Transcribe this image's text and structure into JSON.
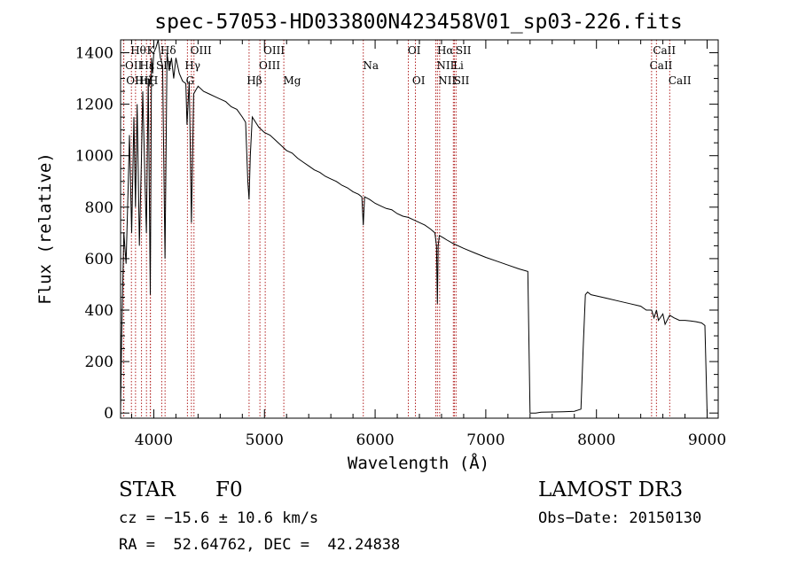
{
  "chart_data": {
    "type": "line",
    "title": "spec-57053-HD033800N423458V01_sp03-226.fits",
    "xlabel": "Wavelength (Å)",
    "ylabel": "Flux (relative)",
    "xlim": [
      3700,
      9100
    ],
    "ylim": [
      -20,
      1450
    ],
    "xticks": [
      4000,
      5000,
      6000,
      7000,
      8000,
      9000
    ],
    "yticks": [
      0,
      200,
      400,
      600,
      800,
      1000,
      1200,
      1400
    ],
    "series": [
      {
        "name": "flux",
        "x": [
          3700,
          3710,
          3730,
          3750,
          3770,
          3780,
          3800,
          3820,
          3835,
          3850,
          3870,
          3889,
          3900,
          3920,
          3933,
          3950,
          3968,
          3980,
          3990,
          4000,
          4020,
          4040,
          4060,
          4080,
          4101,
          4120,
          4140,
          4160,
          4180,
          4200,
          4230,
          4260,
          4290,
          4300,
          4320,
          4340,
          4360,
          4400,
          4450,
          4500,
          4550,
          4600,
          4650,
          4700,
          4750,
          4800,
          4830,
          4850,
          4861,
          4872,
          4890,
          4920,
          4950,
          5000,
          5050,
          5100,
          5150,
          5200,
          5250,
          5300,
          5350,
          5400,
          5450,
          5500,
          5550,
          5600,
          5650,
          5700,
          5750,
          5800,
          5850,
          5880,
          5893,
          5905,
          5950,
          6000,
          6050,
          6100,
          6150,
          6200,
          6250,
          6300,
          6350,
          6400,
          6450,
          6500,
          6540,
          6555,
          6563,
          6570,
          6580,
          6620,
          6650,
          6700,
          6800,
          6900,
          7000,
          7100,
          7200,
          7300,
          7380,
          7400,
          7420,
          7450,
          7500,
          7600,
          7700,
          7800,
          7860,
          7880,
          7900,
          7920,
          7950,
          8000,
          8100,
          8200,
          8300,
          8400,
          8450,
          8498,
          8520,
          8542,
          8560,
          8600,
          8620,
          8662,
          8700,
          8750,
          8800,
          8850,
          8900,
          8950,
          8980,
          9000
        ],
        "y": [
          10,
          300,
          700,
          580,
          900,
          1080,
          700,
          1150,
          800,
          1200,
          650,
          1000,
          1250,
          900,
          700,
          1300,
          460,
          1380,
          1320,
          1400,
          1420,
          1460,
          1380,
          1350,
          600,
          1400,
          1330,
          1380,
          1300,
          1380,
          1320,
          1290,
          1280,
          1120,
          1290,
          740,
          1240,
          1270,
          1250,
          1240,
          1230,
          1220,
          1210,
          1190,
          1180,
          1150,
          1130,
          900,
          830,
          1000,
          1150,
          1130,
          1110,
          1090,
          1080,
          1060,
          1040,
          1020,
          1010,
          990,
          975,
          960,
          945,
          935,
          920,
          910,
          900,
          885,
          875,
          860,
          850,
          840,
          730,
          840,
          830,
          815,
          805,
          795,
          790,
          775,
          765,
          760,
          750,
          740,
          730,
          715,
          700,
          650,
          425,
          650,
          690,
          680,
          672,
          660,
          640,
          622,
          605,
          590,
          575,
          560,
          550,
          0,
          0,
          0,
          3,
          4,
          5,
          7,
          15,
          250,
          460,
          470,
          460,
          455,
          445,
          435,
          425,
          415,
          400,
          400,
          370,
          400,
          360,
          385,
          345,
          380,
          370,
          360,
          360,
          358,
          355,
          350,
          340,
          0
        ]
      }
    ],
    "spectral_lines": [
      {
        "name": "Hθ",
        "wavelength": 3798
      },
      {
        "name": "OII",
        "wavelength": 3727
      },
      {
        "name": "OII",
        "wavelength": 3729
      },
      {
        "name": "Hη",
        "wavelength": 3835
      },
      {
        "name": "K",
        "wavelength": 3934
      },
      {
        "name": "Hε",
        "wavelength": 3970
      },
      {
        "name": "H",
        "wavelength": 3968
      },
      {
        "name": "Hζ",
        "wavelength": 3889
      },
      {
        "name": "SII",
        "wavelength": 4072
      },
      {
        "name": "Hδ",
        "wavelength": 4102
      },
      {
        "name": "OIII",
        "wavelength": 4363
      },
      {
        "name": "Hγ",
        "wavelength": 4340
      },
      {
        "name": "G",
        "wavelength": 4304
      },
      {
        "name": "Hβ",
        "wavelength": 4861
      },
      {
        "name": "OIII",
        "wavelength": 4959
      },
      {
        "name": "OIII",
        "wavelength": 5007
      },
      {
        "name": "Mg",
        "wavelength": 5175
      },
      {
        "name": "Na",
        "wavelength": 5893
      },
      {
        "name": "OI",
        "wavelength": 6300
      },
      {
        "name": "OI",
        "wavelength": 6364
      },
      {
        "name": "Hα",
        "wavelength": 6563
      },
      {
        "name": "NII",
        "wavelength": 6548
      },
      {
        "name": "NII",
        "wavelength": 6583
      },
      {
        "name": "SII",
        "wavelength": 6716
      },
      {
        "name": "Li",
        "wavelength": 6707
      },
      {
        "name": "SII",
        "wavelength": 6731
      },
      {
        "name": "CaII",
        "wavelength": 8498
      },
      {
        "name": "CaII",
        "wavelength": 8542
      },
      {
        "name": "CaII",
        "wavelength": 8662
      }
    ],
    "line_labels": [
      {
        "text": "Hθ",
        "wavelength": 3790,
        "row": 0
      },
      {
        "text": "K",
        "wavelength": 3936,
        "row": 0
      },
      {
        "text": "Hδ",
        "wavelength": 4060,
        "row": 0
      },
      {
        "text": "OIII",
        "wavelength": 4330,
        "row": 0
      },
      {
        "text": "OIII",
        "wavelength": 4990,
        "row": 0
      },
      {
        "text": "OI",
        "wavelength": 6295,
        "row": 0
      },
      {
        "text": "Hα",
        "wavelength": 6560,
        "row": 0
      },
      {
        "text": "SII",
        "wavelength": 6727,
        "row": 0
      },
      {
        "text": "CaII",
        "wavelength": 8510,
        "row": 0
      },
      {
        "text": "OII",
        "wavelength": 3740,
        "row": 1
      },
      {
        "text": "Hε",
        "wavelength": 3872,
        "row": 1
      },
      {
        "text": "SII",
        "wavelength": 4020,
        "row": 1
      },
      {
        "text": "Hγ",
        "wavelength": 4280,
        "row": 1
      },
      {
        "text": "OIII",
        "wavelength": 4950,
        "row": 1
      },
      {
        "text": "Na",
        "wavelength": 5890,
        "row": 1
      },
      {
        "text": "NII",
        "wavelength": 6555,
        "row": 1
      },
      {
        "text": "Li",
        "wavelength": 6705,
        "row": 1
      },
      {
        "text": "CaII",
        "wavelength": 8480,
        "row": 1
      },
      {
        "text": "OII",
        "wavelength": 3750,
        "row": 2
      },
      {
        "text": "Hη",
        "wavelength": 3828,
        "row": 2
      },
      {
        "text": "Hζ",
        "wavelength": 3868,
        "row": 2
      },
      {
        "text": "H",
        "wavelength": 3955,
        "row": 2
      },
      {
        "text": "G",
        "wavelength": 4290,
        "row": 2
      },
      {
        "text": "Hβ",
        "wavelength": 4840,
        "row": 2
      },
      {
        "text": "Mg",
        "wavelength": 5170,
        "row": 2
      },
      {
        "text": "OI",
        "wavelength": 6335,
        "row": 2
      },
      {
        "text": "NII",
        "wavelength": 6570,
        "row": 2
      },
      {
        "text": "SII",
        "wavelength": 6710,
        "row": 2
      },
      {
        "text": "CaII",
        "wavelength": 8650,
        "row": 2
      }
    ],
    "colors": {
      "flux": "#000000",
      "lines": "#b22222",
      "axes": "#000000"
    }
  },
  "info": {
    "object_class": "STAR",
    "subclass": "F0",
    "cz": "cz = −15.6 ± 10.6 km/s",
    "coords": "RA =  52.64762, DEC =  42.24838",
    "survey": "LAMOST DR3",
    "obs_date": "Obs−Date: 20150130"
  }
}
